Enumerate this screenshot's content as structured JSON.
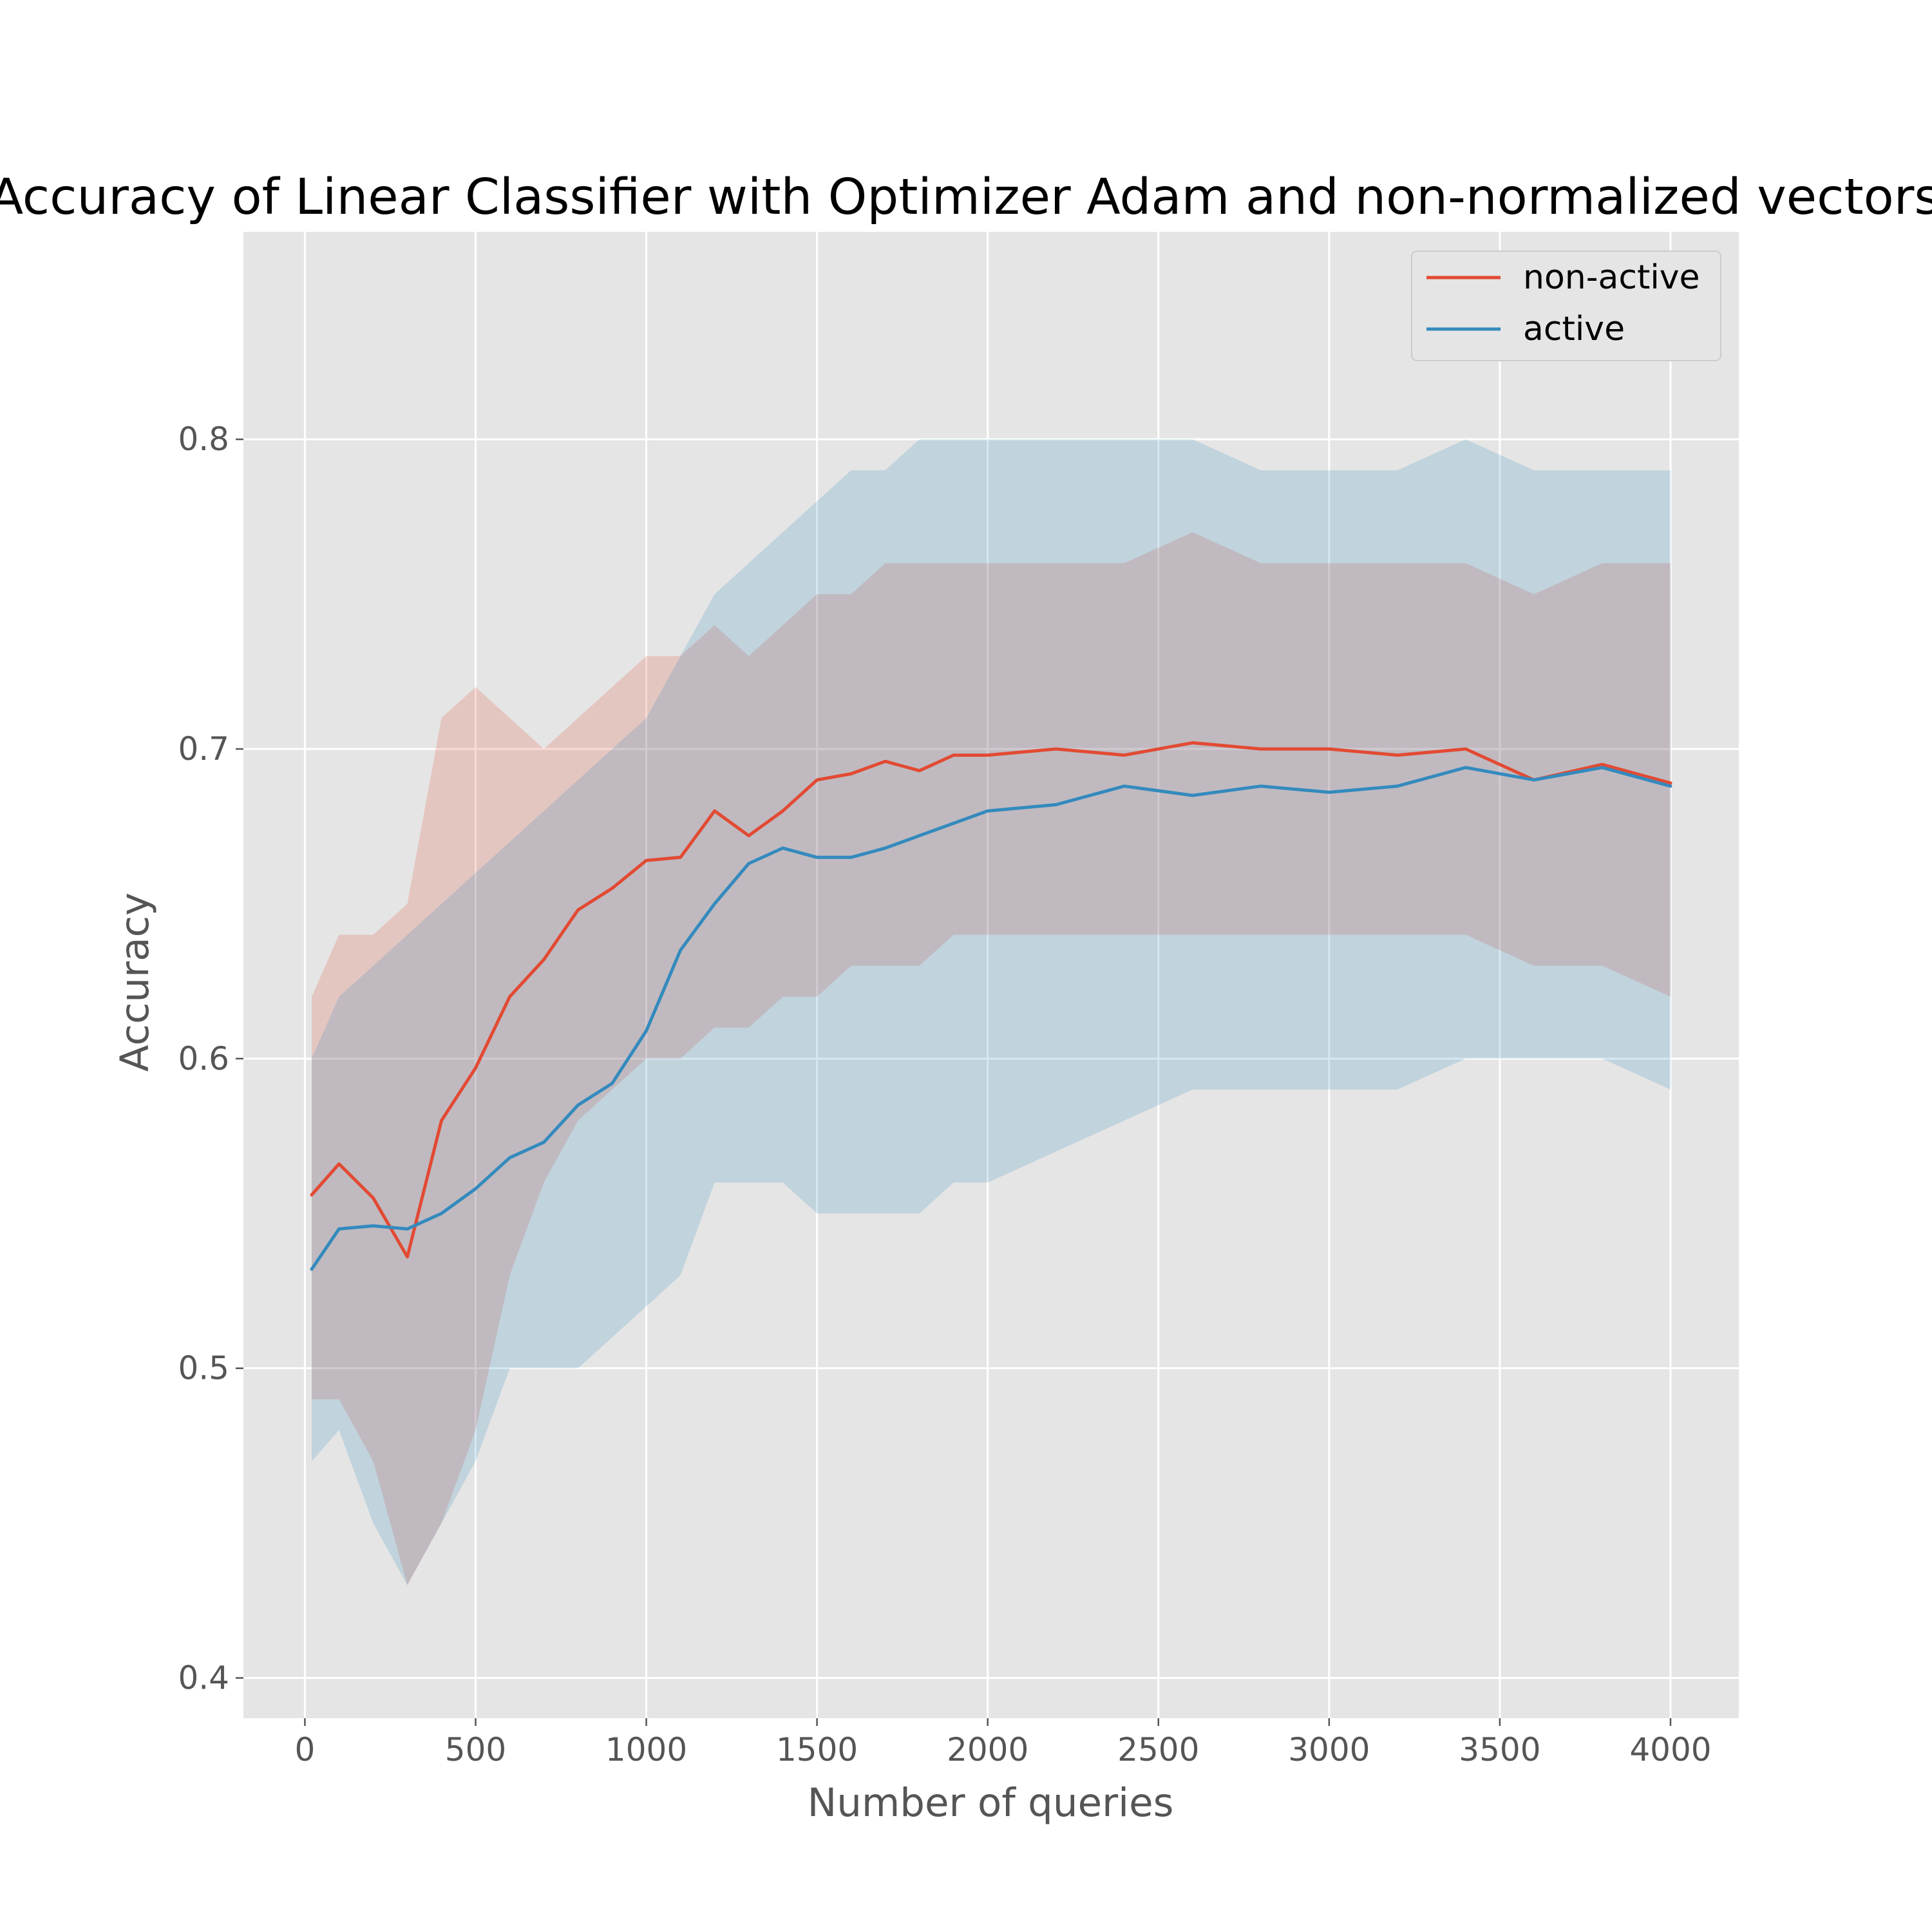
{
  "chart_data": {
    "type": "line",
    "title": "Accuracy of Linear Classifier with Optimizer Adam and non-normalized vectors",
    "xlabel": "Number of queries",
    "ylabel": "Accuracy",
    "xlim": [
      -180,
      4200
    ],
    "ylim": [
      0.387,
      0.867
    ],
    "xticks": [
      0,
      500,
      1000,
      1500,
      2000,
      2500,
      3000,
      3500,
      4000
    ],
    "yticks": [
      0.4,
      0.5,
      0.6,
      0.7,
      0.8
    ],
    "xtick_labels": [
      "0",
      "500",
      "1000",
      "1500",
      "2000",
      "2500",
      "3000",
      "3500",
      "4000"
    ],
    "ytick_labels": [
      "0.4",
      "0.5",
      "0.6",
      "0.7",
      "0.8"
    ],
    "grid": true,
    "legend": {
      "position": "top-right"
    },
    "series": [
      {
        "name": "non-active",
        "color": "#E24A33",
        "x": [
          20,
          100,
          200,
          300,
          400,
          500,
          600,
          700,
          800,
          900,
          1000,
          1100,
          1200,
          1300,
          1400,
          1500,
          1600,
          1700,
          1800,
          1900,
          2000,
          2200,
          2400,
          2600,
          2800,
          3000,
          3200,
          3400,
          3600,
          3800,
          4000
        ],
        "y": [
          0.556,
          0.566,
          0.555,
          0.536,
          0.58,
          0.597,
          0.62,
          0.632,
          0.648,
          0.655,
          0.664,
          0.665,
          0.68,
          0.672,
          0.68,
          0.69,
          0.692,
          0.696,
          0.693,
          0.698,
          0.698,
          0.7,
          0.698,
          0.702,
          0.7,
          0.7,
          0.698,
          0.7,
          0.69,
          0.695,
          0.689
        ],
        "lower": [
          0.49,
          0.49,
          0.47,
          0.43,
          0.45,
          0.48,
          0.53,
          0.56,
          0.58,
          0.59,
          0.6,
          0.6,
          0.61,
          0.61,
          0.62,
          0.62,
          0.63,
          0.63,
          0.63,
          0.64,
          0.64,
          0.64,
          0.64,
          0.64,
          0.64,
          0.64,
          0.64,
          0.64,
          0.63,
          0.63,
          0.62
        ],
        "upper": [
          0.62,
          0.64,
          0.64,
          0.65,
          0.71,
          0.72,
          0.71,
          0.7,
          0.71,
          0.72,
          0.73,
          0.73,
          0.74,
          0.73,
          0.74,
          0.75,
          0.75,
          0.76,
          0.76,
          0.76,
          0.76,
          0.76,
          0.76,
          0.77,
          0.76,
          0.76,
          0.76,
          0.76,
          0.75,
          0.76,
          0.76
        ]
      },
      {
        "name": "active",
        "color": "#348ABD",
        "x": [
          20,
          100,
          200,
          300,
          400,
          500,
          600,
          700,
          800,
          900,
          1000,
          1100,
          1200,
          1300,
          1400,
          1500,
          1600,
          1700,
          1800,
          1900,
          2000,
          2200,
          2400,
          2600,
          2800,
          3000,
          3200,
          3400,
          3600,
          3800,
          4000
        ],
        "y": [
          0.532,
          0.545,
          0.546,
          0.545,
          0.55,
          0.558,
          0.568,
          0.573,
          0.585,
          0.592,
          0.609,
          0.635,
          0.65,
          0.663,
          0.668,
          0.665,
          0.665,
          0.668,
          0.672,
          0.676,
          0.68,
          0.682,
          0.688,
          0.685,
          0.688,
          0.686,
          0.688,
          0.694,
          0.69,
          0.694,
          0.688
        ],
        "lower": [
          0.47,
          0.48,
          0.45,
          0.43,
          0.45,
          0.47,
          0.5,
          0.5,
          0.5,
          0.51,
          0.52,
          0.53,
          0.56,
          0.56,
          0.56,
          0.55,
          0.55,
          0.55,
          0.55,
          0.56,
          0.56,
          0.57,
          0.58,
          0.59,
          0.59,
          0.59,
          0.59,
          0.6,
          0.6,
          0.6,
          0.59
        ],
        "upper": [
          0.6,
          0.62,
          0.63,
          0.64,
          0.65,
          0.66,
          0.67,
          0.68,
          0.69,
          0.7,
          0.71,
          0.73,
          0.75,
          0.76,
          0.77,
          0.78,
          0.79,
          0.79,
          0.8,
          0.8,
          0.8,
          0.8,
          0.8,
          0.8,
          0.79,
          0.79,
          0.79,
          0.8,
          0.79,
          0.79,
          0.79
        ]
      }
    ]
  }
}
